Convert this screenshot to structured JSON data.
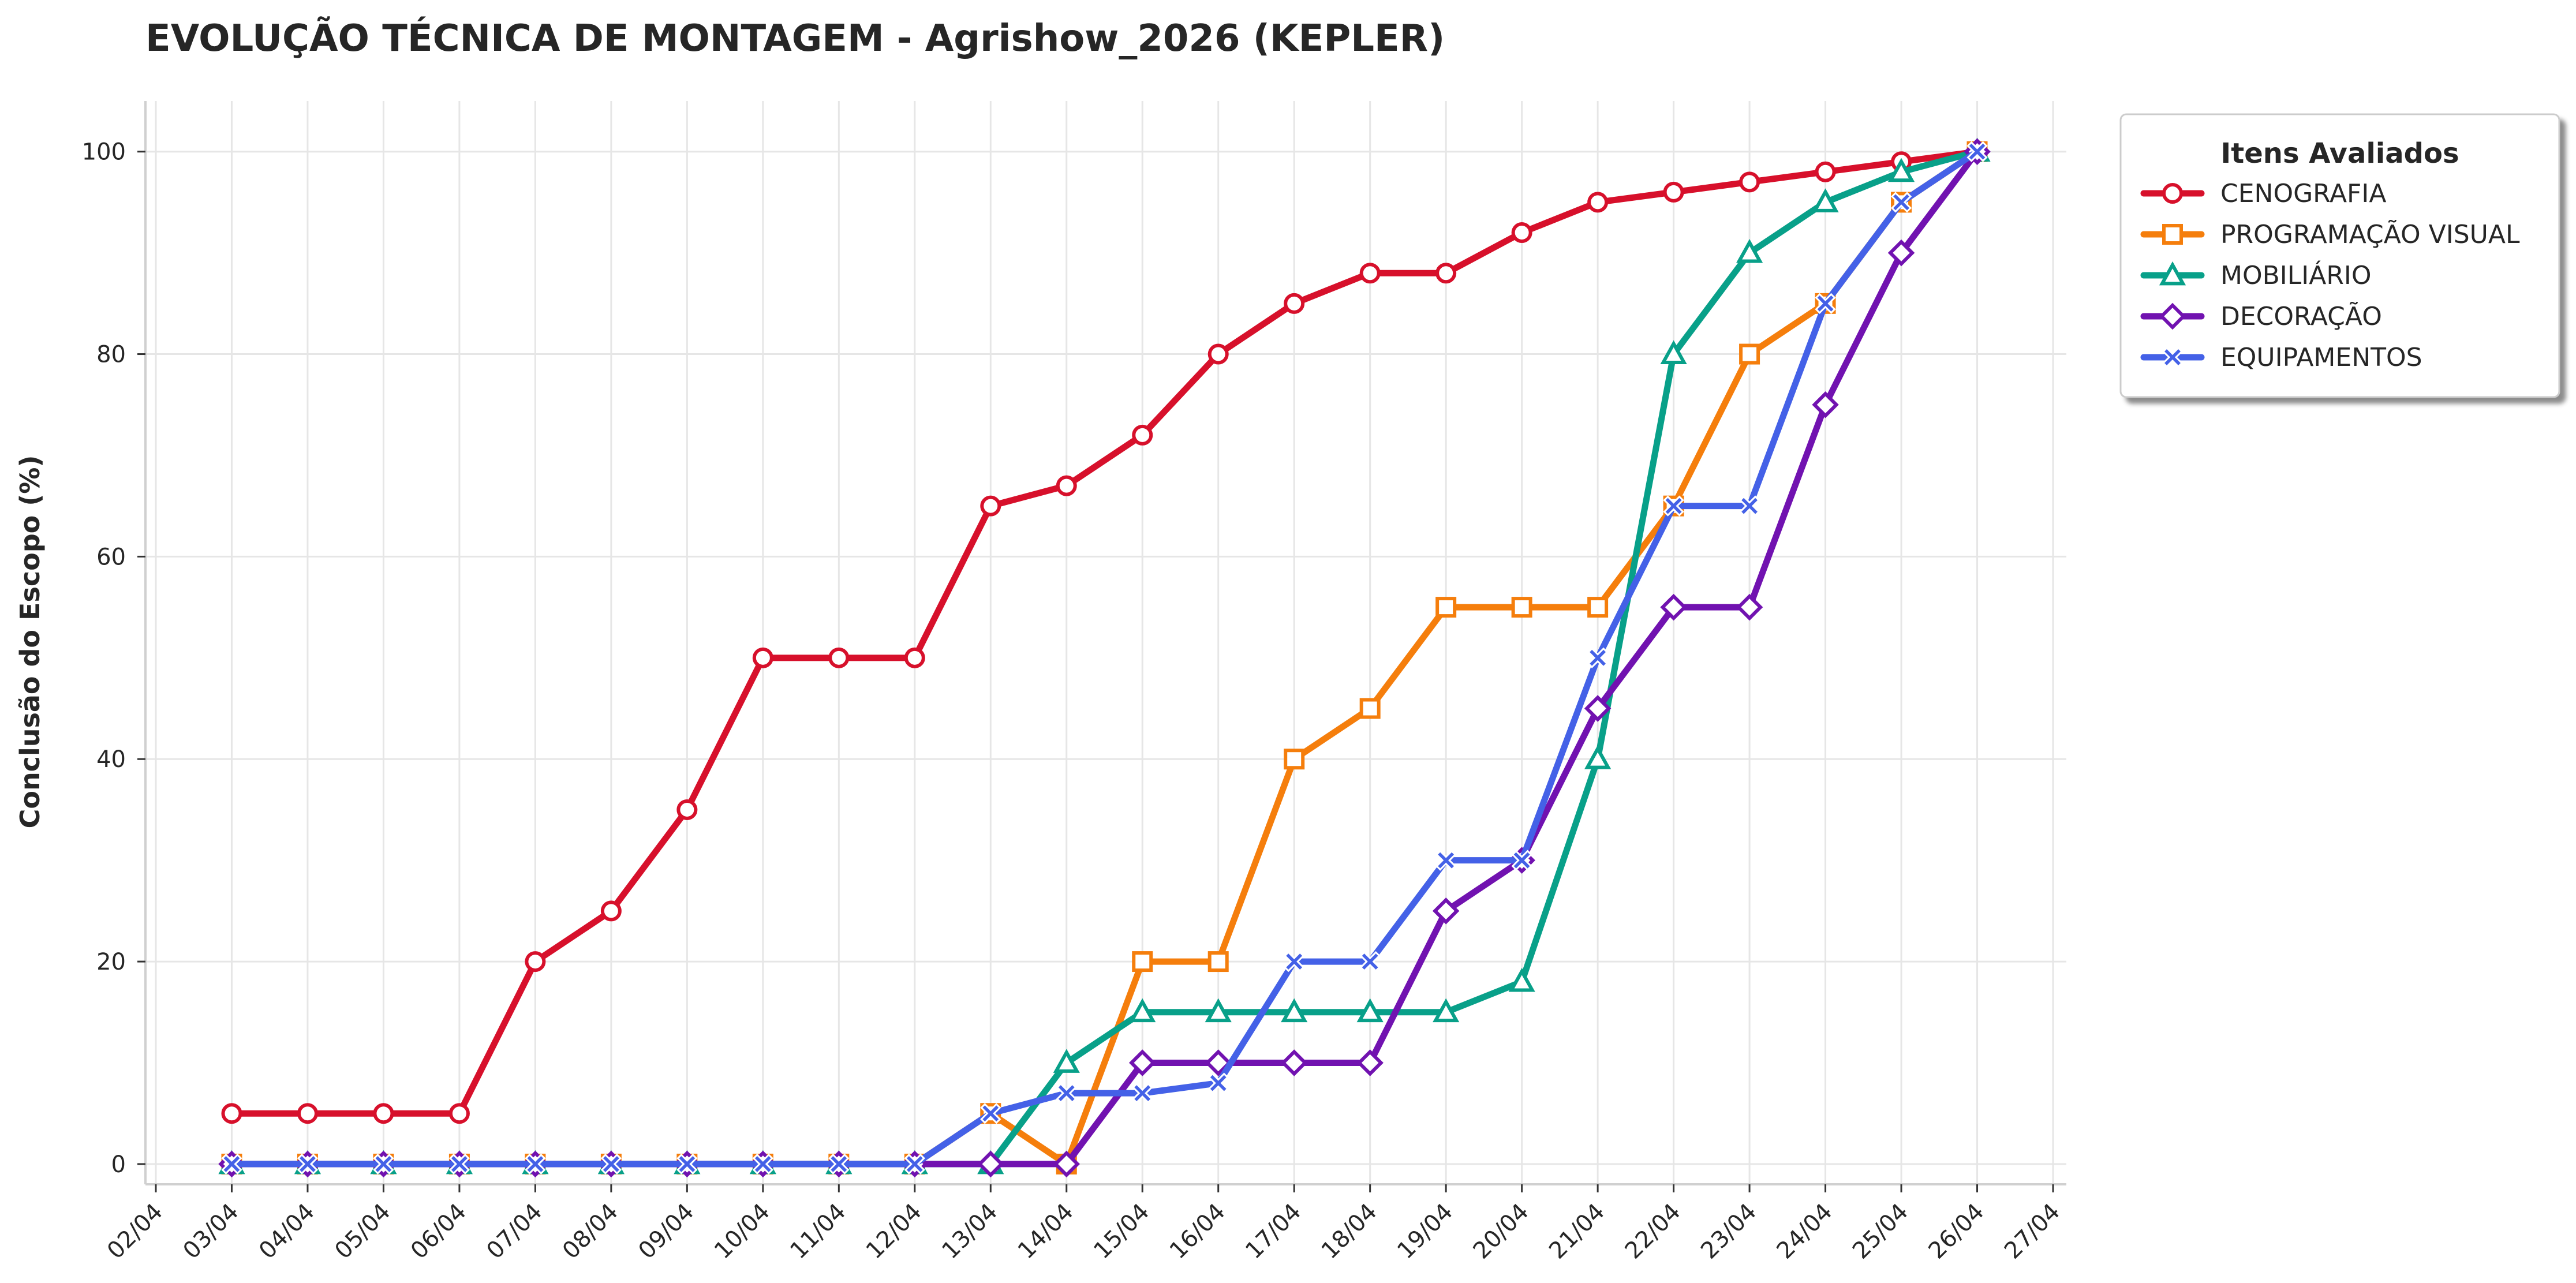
{
  "chart_data": {
    "type": "line",
    "title": "EVOLUÇÃO TÉCNICA DE MONTAGEM - Agrishow_2026 (KEPLER)",
    "xlabel": "",
    "ylabel": "Conclusão do Escopo (%)",
    "x_ticks": [
      "02/04",
      "03/04",
      "04/04",
      "05/04",
      "06/04",
      "07/04",
      "08/04",
      "09/04",
      "10/04",
      "11/04",
      "12/04",
      "13/04",
      "14/04",
      "15/04",
      "16/04",
      "17/04",
      "18/04",
      "19/04",
      "20/04",
      "21/04",
      "22/04",
      "23/04",
      "24/04",
      "25/04",
      "26/04",
      "27/04"
    ],
    "y_ticks": [
      "0",
      "20",
      "40",
      "60",
      "80",
      "100"
    ],
    "ylim": [
      -2,
      105
    ],
    "grid": true,
    "legend": {
      "title": "Itens Avaliados",
      "placement": "upper-right-outside"
    },
    "x": [
      "03/04",
      "04/04",
      "05/04",
      "06/04",
      "07/04",
      "08/04",
      "09/04",
      "10/04",
      "11/04",
      "12/04",
      "13/04",
      "14/04",
      "15/04",
      "16/04",
      "17/04",
      "18/04",
      "19/04",
      "20/04",
      "21/04",
      "22/04",
      "23/04",
      "24/04",
      "25/04",
      "26/04"
    ],
    "series": [
      {
        "name": "CENOGRAFIA",
        "color": "#d7102b",
        "marker": "circle",
        "values": [
          5,
          5,
          5,
          5,
          20,
          25,
          35,
          50,
          50,
          50,
          65,
          67,
          72,
          80,
          85,
          88,
          88,
          92,
          95,
          96,
          97,
          98,
          99,
          100
        ]
      },
      {
        "name": "PROGRAMAÇÃO VISUAL",
        "color": "#f57e0c",
        "marker": "square",
        "values": [
          0,
          0,
          0,
          0,
          0,
          0,
          0,
          0,
          0,
          0,
          5,
          0,
          20,
          20,
          40,
          45,
          55,
          55,
          55,
          65,
          80,
          85,
          95,
          100
        ]
      },
      {
        "name": "MOBILIÁRIO",
        "color": "#08a089",
        "marker": "triangle",
        "values": [
          0,
          0,
          0,
          0,
          0,
          0,
          0,
          0,
          0,
          0,
          0,
          10,
          15,
          15,
          15,
          15,
          15,
          18,
          40,
          80,
          90,
          95,
          98,
          100
        ]
      },
      {
        "name": "DECORAÇÃO",
        "color": "#7112b0",
        "marker": "diamond",
        "values": [
          0,
          0,
          0,
          0,
          0,
          0,
          0,
          0,
          0,
          0,
          0,
          0,
          10,
          10,
          10,
          10,
          25,
          30,
          45,
          55,
          55,
          75,
          90,
          100
        ]
      },
      {
        "name": "EQUIPAMENTOS",
        "color": "#4461e7",
        "marker": "x-filled",
        "values": [
          0,
          0,
          0,
          0,
          0,
          0,
          0,
          0,
          0,
          0,
          5,
          7,
          7,
          8,
          20,
          20,
          30,
          30,
          50,
          65,
          65,
          85,
          95,
          100
        ]
      }
    ]
  }
}
